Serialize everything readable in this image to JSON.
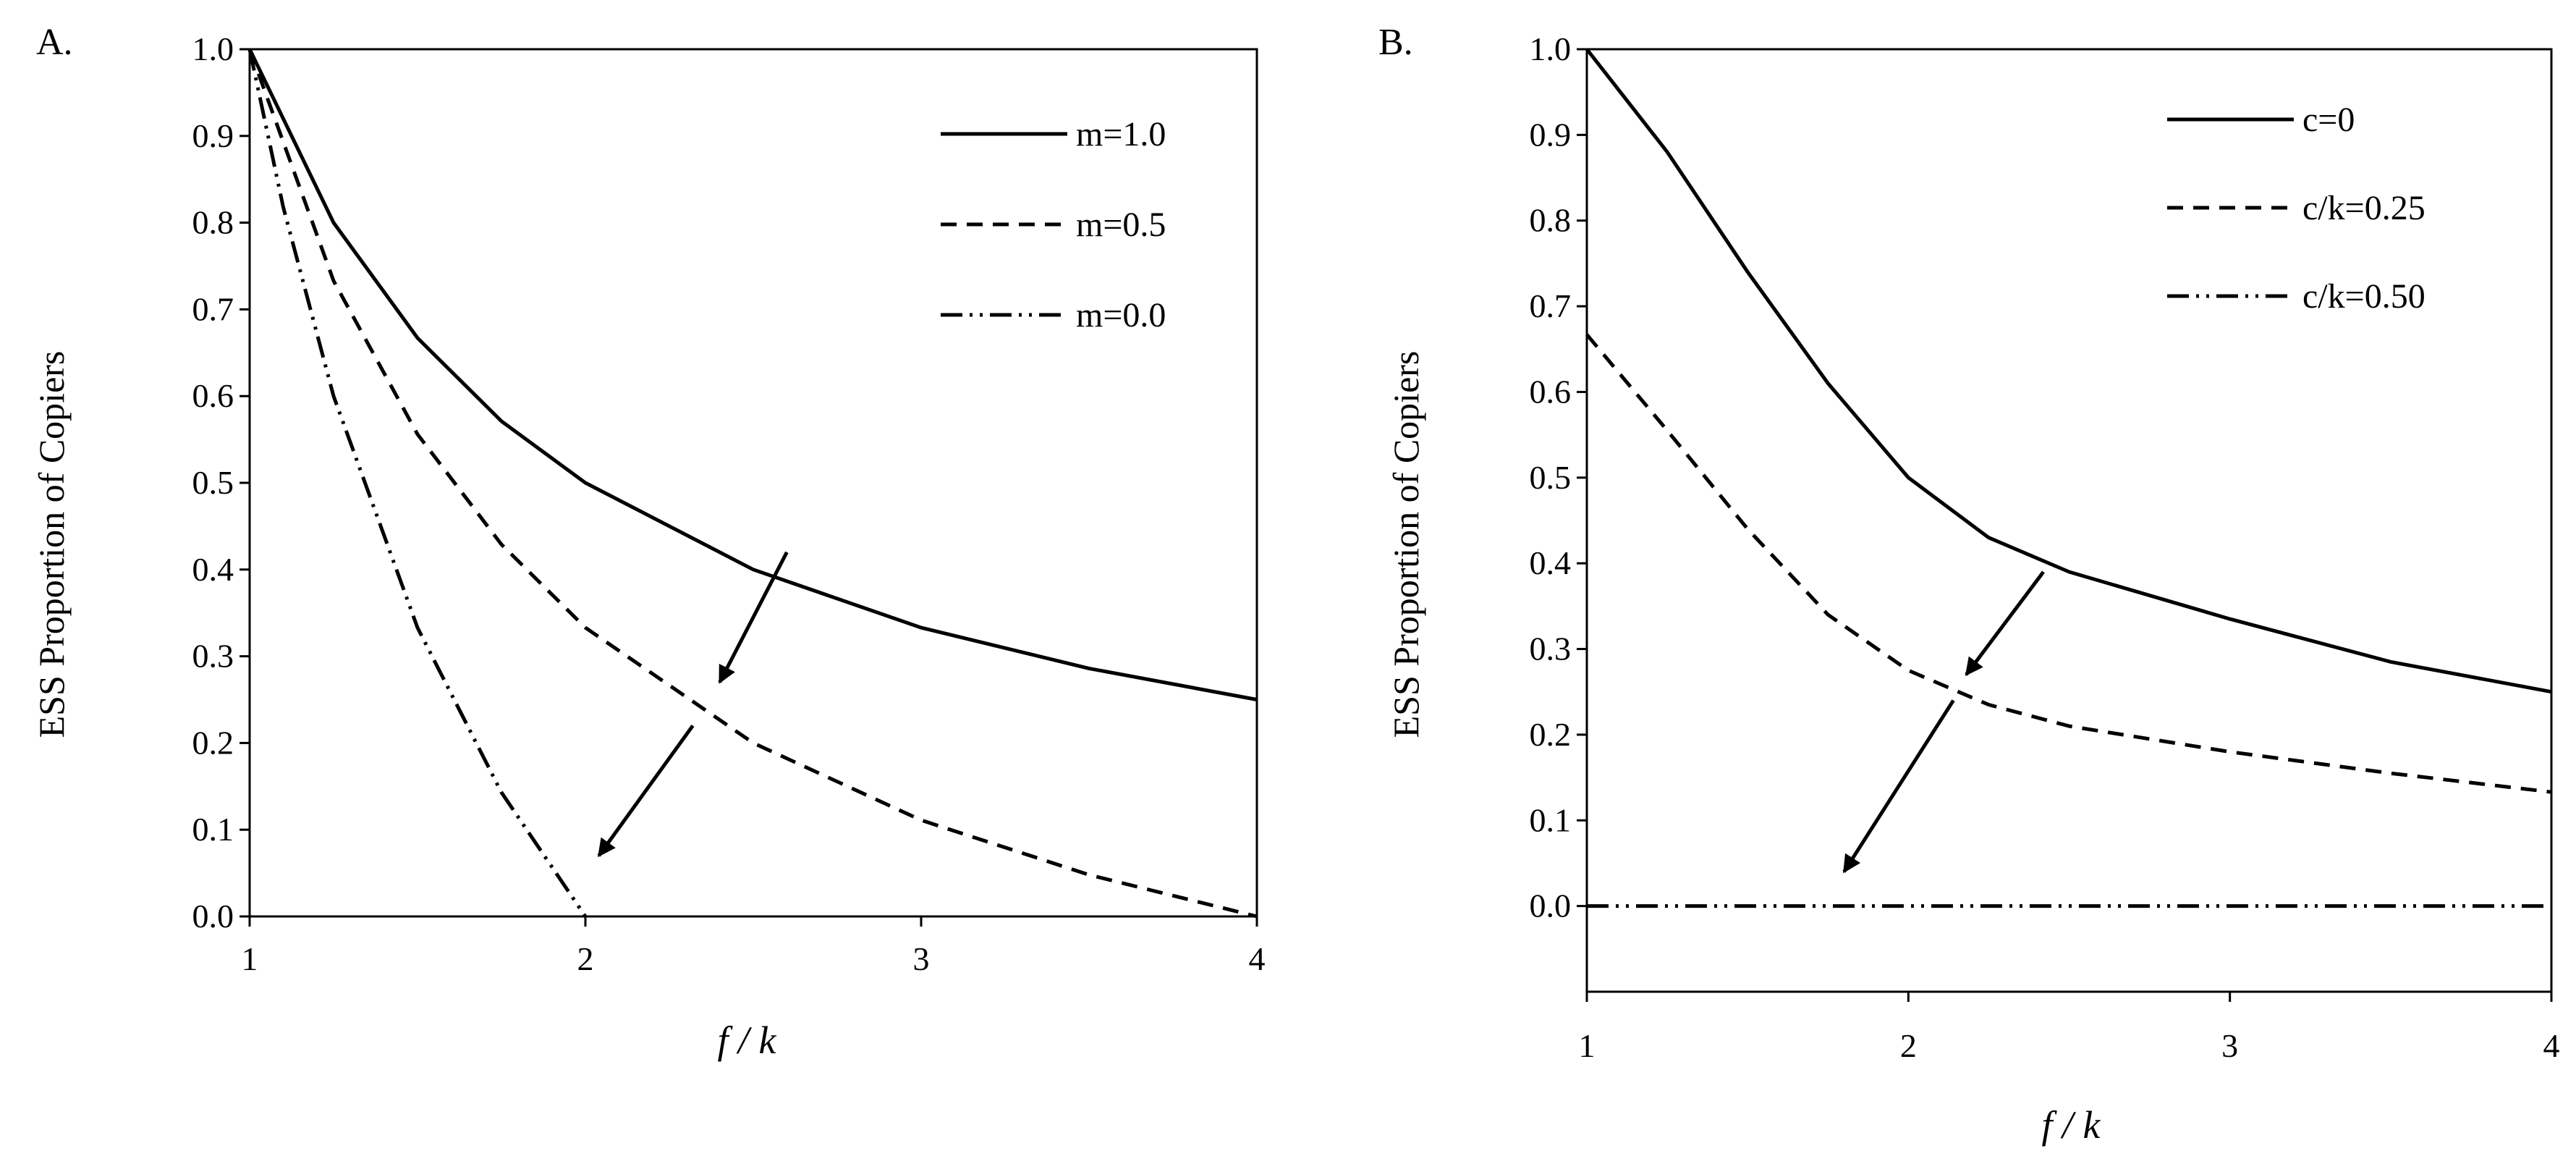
{
  "chart_data": [
    {
      "panel_label": "A.",
      "type": "line",
      "xlabel": "f / k",
      "ylabel": "ESS Proportion of Copiers",
      "xlim": [
        1,
        4
      ],
      "ylim": [
        0,
        1
      ],
      "xticks": [
        "1",
        "2",
        "3",
        "4"
      ],
      "yticks": [
        "0.0",
        "0.1",
        "0.2",
        "0.3",
        "0.4",
        "0.5",
        "0.6",
        "0.7",
        "0.8",
        "0.9",
        "1.0"
      ],
      "grid": false,
      "legend_position": "top-right",
      "series": [
        {
          "name": "m=1.0",
          "style": "solid",
          "x": [
            1,
            1.25,
            1.5,
            1.75,
            2,
            2.5,
            3,
            3.5,
            4
          ],
          "y": [
            1.0,
            0.8,
            0.667,
            0.571,
            0.5,
            0.4,
            0.333,
            0.286,
            0.25
          ]
        },
        {
          "name": "m=0.5",
          "style": "dashed",
          "x": [
            1,
            1.25,
            1.5,
            1.75,
            2,
            2.5,
            3,
            3.5,
            4
          ],
          "y": [
            1.0,
            0.733,
            0.556,
            0.429,
            0.333,
            0.2,
            0.111,
            0.048,
            0.0
          ]
        },
        {
          "name": "m=0.0",
          "style": "dashdotdot",
          "x": [
            1,
            1.1,
            1.25,
            1.5,
            1.75,
            2
          ],
          "y": [
            1.0,
            0.818,
            0.6,
            0.333,
            0.143,
            0.0
          ]
        }
      ],
      "arrows": [
        {
          "from": [
            2.6,
            0.42
          ],
          "to": [
            2.4,
            0.27
          ]
        },
        {
          "from": [
            2.32,
            0.22
          ],
          "to": [
            2.04,
            0.07
          ]
        }
      ]
    },
    {
      "panel_label": "B.",
      "type": "line",
      "xlabel": "f / k",
      "ylabel": "ESS Proportion of Copiers",
      "xlim": [
        1,
        4
      ],
      "ylim": [
        -0.1,
        1
      ],
      "xticks": [
        "1",
        "2",
        "3",
        "4"
      ],
      "yticks": [
        "0.0",
        "0.1",
        "0.2",
        "0.3",
        "0.4",
        "0.5",
        "0.6",
        "0.7",
        "0.8",
        "0.9",
        "1.0"
      ],
      "grid": false,
      "legend_position": "top-right",
      "series": [
        {
          "name": "c=0",
          "style": "solid",
          "x": [
            1,
            1.25,
            1.5,
            1.75,
            2,
            2.25,
            2.5,
            3,
            3.5,
            4
          ],
          "y": [
            1.0,
            0.88,
            0.74,
            0.61,
            0.5,
            0.43,
            0.39,
            0.335,
            0.285,
            0.25
          ]
        },
        {
          "name": "c/k=0.25",
          "style": "dashed",
          "x": [
            1,
            1.25,
            1.5,
            1.75,
            2,
            2.25,
            2.5,
            3,
            3.5,
            4
          ],
          "y": [
            0.667,
            0.555,
            0.44,
            0.34,
            0.275,
            0.235,
            0.21,
            0.18,
            0.155,
            0.133
          ]
        },
        {
          "name": "c/k=0.50",
          "style": "dashdotdot",
          "x": [
            1,
            4
          ],
          "y": [
            0.0,
            0.0
          ]
        }
      ],
      "arrows": [
        {
          "from": [
            2.42,
            0.39
          ],
          "to": [
            2.18,
            0.27
          ]
        },
        {
          "from": [
            2.14,
            0.24
          ],
          "to": [
            1.8,
            0.04
          ]
        }
      ]
    }
  ]
}
